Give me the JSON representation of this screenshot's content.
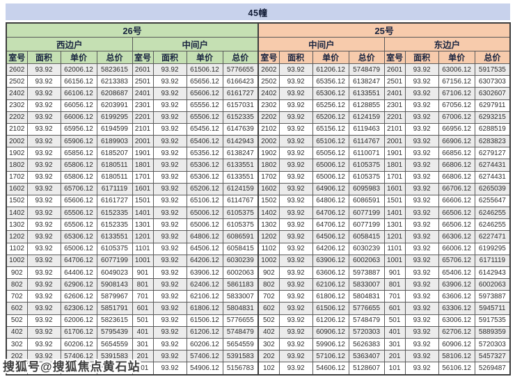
{
  "title": "45幢",
  "watermark": "搜狐号@搜狐焦点黄石站",
  "columns": [
    "室号",
    "面积",
    "单价",
    "总价"
  ],
  "buildings": [
    {
      "label": "26号",
      "units": [
        {
          "label": "西边户"
        },
        {
          "label": "中间户"
        }
      ]
    },
    {
      "label": "25号",
      "units": [
        {
          "label": "中间户"
        },
        {
          "label": "东边户"
        }
      ]
    }
  ],
  "colors": {
    "title_bg": "#c8d2ec",
    "green_header": "#c5e0b3",
    "green_cell": "#dfedd2",
    "peach_header": "#f7cbac",
    "peach_cell": "#fbe4d1"
  },
  "groups": [
    {
      "building": "26号",
      "unit": "西边户",
      "rows": [
        [
          "2602",
          "93.92",
          "62006.12",
          "5823615"
        ],
        [
          "2502",
          "93.92",
          "66156.12",
          "6213383"
        ],
        [
          "2402",
          "93.92",
          "66106.12",
          "6208687"
        ],
        [
          "2302",
          "93.92",
          "66056.12",
          "6203991"
        ],
        [
          "2202",
          "93.92",
          "66006.12",
          "6199295"
        ],
        [
          "2102",
          "93.92",
          "65956.12",
          "6194599"
        ],
        [
          "2002",
          "93.92",
          "65906.12",
          "6189903"
        ],
        [
          "1902",
          "93.92",
          "65856.12",
          "6185207"
        ],
        [
          "1802",
          "93.92",
          "65806.12",
          "6180511"
        ],
        [
          "1702",
          "93.92",
          "65806.12",
          "6180511"
        ],
        [
          "1602",
          "93.92",
          "65706.12",
          "6171119"
        ],
        [
          "1502",
          "93.92",
          "65606.12",
          "6161727"
        ],
        [
          "1402",
          "93.92",
          "65506.12",
          "6152335"
        ],
        [
          "1302",
          "93.92",
          "65506.12",
          "6152335"
        ],
        [
          "1202",
          "93.92",
          "65306.12",
          "6133551"
        ],
        [
          "1102",
          "93.92",
          "65006.12",
          "6105375"
        ],
        [
          "1002",
          "93.92",
          "64706.12",
          "6077199"
        ],
        [
          "902",
          "93.92",
          "64406.12",
          "6049023"
        ],
        [
          "802",
          "93.92",
          "62906.12",
          "5908143"
        ],
        [
          "702",
          "93.92",
          "62606.12",
          "5879967"
        ],
        [
          "602",
          "93.92",
          "62306.12",
          "5851791"
        ],
        [
          "502",
          "93.92",
          "62006.12",
          "5823615"
        ],
        [
          "402",
          "93.92",
          "61706.12",
          "5795439"
        ],
        [
          "302",
          "93.92",
          "60206.12",
          "5654559"
        ],
        [
          "202",
          "93.92",
          "57406.12",
          "5391583"
        ],
        [
          "102",
          "93.92",
          "55406.12",
          "5203743"
        ]
      ]
    },
    {
      "building": "26号",
      "unit": "中间户",
      "rows": [
        [
          "2601",
          "93.92",
          "61506.12",
          "5776655"
        ],
        [
          "2501",
          "93.92",
          "65656.12",
          "6166423"
        ],
        [
          "2401",
          "93.92",
          "65606.12",
          "6161727"
        ],
        [
          "2301",
          "93.92",
          "65556.12",
          "6157031"
        ],
        [
          "2201",
          "93.92",
          "65506.12",
          "6152335"
        ],
        [
          "2101",
          "93.92",
          "65456.12",
          "6147639"
        ],
        [
          "2001",
          "93.92",
          "65406.12",
          "6142943"
        ],
        [
          "1901",
          "93.92",
          "65356.12",
          "6138247"
        ],
        [
          "1801",
          "93.92",
          "65306.12",
          "6133551"
        ],
        [
          "1701",
          "93.92",
          "65306.12",
          "6133551"
        ],
        [
          "1601",
          "93.92",
          "65206.12",
          "6124159"
        ],
        [
          "1501",
          "93.92",
          "65106.12",
          "6114767"
        ],
        [
          "1401",
          "93.92",
          "65006.12",
          "6105375"
        ],
        [
          "1301",
          "93.92",
          "65006.12",
          "6105375"
        ],
        [
          "1201",
          "93.92",
          "64806.12",
          "6086591"
        ],
        [
          "1101",
          "93.92",
          "64506.12",
          "6058415"
        ],
        [
          "1001",
          "93.92",
          "64206.12",
          "6030239"
        ],
        [
          "901",
          "93.92",
          "63906.12",
          "6002063"
        ],
        [
          "801",
          "93.92",
          "62406.12",
          "5861183"
        ],
        [
          "701",
          "93.92",
          "62106.12",
          "5833007"
        ],
        [
          "601",
          "93.92",
          "61806.12",
          "5804831"
        ],
        [
          "501",
          "93.92",
          "61506.12",
          "5776655"
        ],
        [
          "401",
          "93.92",
          "61206.12",
          "5748479"
        ],
        [
          "301",
          "93.92",
          "60206.12",
          "5654559"
        ],
        [
          "201",
          "93.92",
          "57406.12",
          "5391583"
        ],
        [
          "101",
          "93.92",
          "54906.12",
          "5156783"
        ]
      ]
    },
    {
      "building": "25号",
      "unit": "中间户",
      "rows": [
        [
          "2602",
          "93.92",
          "61206.12",
          "5748479"
        ],
        [
          "2502",
          "93.92",
          "65356.12",
          "6138247"
        ],
        [
          "2402",
          "93.92",
          "65306.12",
          "6133551"
        ],
        [
          "2302",
          "93.92",
          "65256.12",
          "6128855"
        ],
        [
          "2202",
          "93.92",
          "65206.12",
          "6124159"
        ],
        [
          "2102",
          "93.92",
          "65156.12",
          "6119463"
        ],
        [
          "2002",
          "93.92",
          "65106.12",
          "6114767"
        ],
        [
          "1902",
          "93.92",
          "65056.12",
          "6110071"
        ],
        [
          "1802",
          "93.92",
          "65006.12",
          "6105375"
        ],
        [
          "1702",
          "93.92",
          "65006.12",
          "6105375"
        ],
        [
          "1602",
          "93.92",
          "64906.12",
          "6095983"
        ],
        [
          "1502",
          "93.92",
          "64806.12",
          "6086591"
        ],
        [
          "1402",
          "93.92",
          "64706.12",
          "6077199"
        ],
        [
          "1302",
          "93.92",
          "64706.12",
          "6077199"
        ],
        [
          "1202",
          "93.92",
          "64506.12",
          "6058415"
        ],
        [
          "1102",
          "93.92",
          "64206.12",
          "6030239"
        ],
        [
          "1002",
          "93.92",
          "63906.12",
          "6002063"
        ],
        [
          "902",
          "93.92",
          "63606.12",
          "5973887"
        ],
        [
          "802",
          "93.92",
          "62106.12",
          "5833007"
        ],
        [
          "702",
          "93.92",
          "61806.12",
          "5804831"
        ],
        [
          "602",
          "93.92",
          "61506.12",
          "5776655"
        ],
        [
          "502",
          "93.92",
          "61206.12",
          "5748479"
        ],
        [
          "402",
          "93.92",
          "60906.12",
          "5720303"
        ],
        [
          "302",
          "93.92",
          "59906.12",
          "5626383"
        ],
        [
          "202",
          "93.92",
          "57106.12",
          "5363407"
        ],
        [
          "102",
          "93.92",
          "54606.12",
          "5128607"
        ]
      ]
    },
    {
      "building": "25号",
      "unit": "东边户",
      "rows": [
        [
          "2601",
          "93.92",
          "63006.12",
          "5917535"
        ],
        [
          "2501",
          "93.92",
          "67156.12",
          "6307303"
        ],
        [
          "2401",
          "93.92",
          "67106.12",
          "6302607"
        ],
        [
          "2301",
          "93.92",
          "67056.12",
          "6297911"
        ],
        [
          "2201",
          "93.92",
          "67006.12",
          "6293215"
        ],
        [
          "2101",
          "93.92",
          "66956.12",
          "6288519"
        ],
        [
          "2001",
          "93.92",
          "66906.12",
          "6283823"
        ],
        [
          "1901",
          "93.92",
          "66856.12",
          "6279127"
        ],
        [
          "1801",
          "93.92",
          "66806.12",
          "6274431"
        ],
        [
          "1701",
          "93.92",
          "66806.12",
          "6274431"
        ],
        [
          "1601",
          "93.92",
          "66706.12",
          "6265039"
        ],
        [
          "1501",
          "93.92",
          "66606.12",
          "6255647"
        ],
        [
          "1401",
          "93.92",
          "66506.12",
          "6246255"
        ],
        [
          "1301",
          "93.92",
          "66506.12",
          "6246255"
        ],
        [
          "1201",
          "93.92",
          "66306.12",
          "6227471"
        ],
        [
          "1101",
          "93.92",
          "66006.12",
          "6199295"
        ],
        [
          "1001",
          "93.92",
          "65706.12",
          "6171119"
        ],
        [
          "901",
          "93.92",
          "65406.12",
          "6142943"
        ],
        [
          "801",
          "93.92",
          "63906.12",
          "6002063"
        ],
        [
          "701",
          "93.92",
          "63606.12",
          "5973887"
        ],
        [
          "601",
          "93.92",
          "63306.12",
          "5945711"
        ],
        [
          "501",
          "93.92",
          "63006.12",
          "5917535"
        ],
        [
          "401",
          "93.92",
          "62706.12",
          "5889359"
        ],
        [
          "301",
          "93.92",
          "60906.12",
          "5720303"
        ],
        [
          "201",
          "93.92",
          "58106.12",
          "5457327"
        ],
        [
          "101",
          "93.92",
          "56106.12",
          "5269487"
        ]
      ]
    }
  ]
}
